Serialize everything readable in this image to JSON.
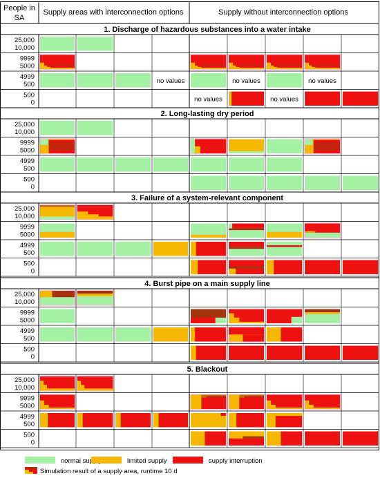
{
  "colors": {
    "normal": "#a6f0a6",
    "limited": "#f5b700",
    "interruption": "#ee1111",
    "transition": "#a3340f",
    "grid": "#000000",
    "tint": "#f7c7dc"
  },
  "header": {
    "people_col": "People in SA",
    "group_interconnection": "Supply areas with interconnection options",
    "group_no_interconnection": "Supply without interconnection options"
  },
  "band_labels": [
    "25,000\n10,000",
    "9999\n5000",
    "4999\n500",
    "500\n0"
  ],
  "no_values_label": "no values",
  "scenarios": [
    {
      "title": "1. Discharge of hazardous substances into a water intake",
      "rows": [
        [
          {
            "pat": "N"
          },
          {
            "pat": "N"
          },
          null,
          null,
          null,
          null,
          null,
          null,
          null
        ],
        [
          {
            "pat": "R1",
            "tint": true
          },
          null,
          null,
          null,
          {
            "pat": "R1",
            "tint": true
          },
          {
            "pat": "R1",
            "tint": true
          },
          {
            "pat": "R1",
            "tint": true
          },
          {
            "pat": "R1",
            "tint": true
          },
          null
        ],
        [
          {
            "pat": "N"
          },
          {
            "pat": "N"
          },
          {
            "pat": "N"
          },
          "nv",
          {
            "pat": "N"
          },
          "nv",
          {
            "pat": "N"
          },
          "nv",
          null
        ],
        [
          null,
          null,
          null,
          null,
          "nv",
          {
            "pat": "R2"
          },
          "nv",
          {
            "pat": "R"
          },
          {
            "pat": "R"
          }
        ]
      ]
    },
    {
      "title": "2. Long-lasting dry period",
      "rows": [
        [
          {
            "pat": "N"
          },
          {
            "pat": "N"
          },
          null,
          null,
          null,
          null,
          null,
          null,
          null
        ],
        [
          {
            "pat": "R3",
            "tint": true
          },
          null,
          null,
          null,
          {
            "pat": "R4",
            "tint": true
          },
          {
            "pat": "L1"
          },
          {
            "pat": "N"
          },
          {
            "pat": "R3",
            "tint": true
          },
          null
        ],
        [
          {
            "pat": "N"
          },
          {
            "pat": "N"
          },
          {
            "pat": "N"
          },
          {
            "pat": "N"
          },
          {
            "pat": "N"
          },
          {
            "pat": "N"
          },
          {
            "pat": "N"
          },
          null,
          null
        ],
        [
          null,
          null,
          null,
          null,
          {
            "pat": "N"
          },
          {
            "pat": "N"
          },
          {
            "pat": "N"
          },
          {
            "pat": "N"
          },
          {
            "pat": "N"
          }
        ]
      ]
    },
    {
      "title": "3. Failure of a system-relevant component",
      "rows": [
        [
          {
            "pat": "L2",
            "tint": true
          },
          {
            "pat": "L3",
            "tint": true
          },
          null,
          null,
          null,
          null,
          null,
          null,
          null
        ],
        [
          {
            "pat": "NL"
          },
          null,
          null,
          null,
          {
            "pat": "NR"
          },
          {
            "pat": "NR2"
          },
          {
            "pat": "NL"
          },
          {
            "pat": "NR3",
            "tint": true
          },
          null
        ],
        [
          {
            "pat": "N"
          },
          {
            "pat": "N"
          },
          {
            "pat": "N"
          },
          {
            "pat": "L"
          },
          {
            "pat": "R5"
          },
          {
            "pat": "NR4"
          },
          {
            "pat": "NR5"
          },
          null,
          null
        ],
        [
          null,
          null,
          null,
          null,
          {
            "pat": "R6"
          },
          {
            "pat": "R7"
          },
          {
            "pat": "R6"
          },
          {
            "pat": "R"
          },
          {
            "pat": "R"
          }
        ]
      ]
    },
    {
      "title": "4. Burst pipe on a main supply line",
      "rows": [
        [
          {
            "pat": "NT",
            "tint": true
          },
          {
            "pat": "NT2",
            "tint": true
          },
          null,
          null,
          null,
          null,
          null,
          null,
          null
        ],
        [
          {
            "pat": "N"
          },
          null,
          null,
          null,
          {
            "pat": "R8"
          },
          {
            "pat": "R9"
          },
          {
            "pat": "R10"
          },
          {
            "pat": "NR6"
          },
          null
        ],
        [
          {
            "pat": "N"
          },
          {
            "pat": "N"
          },
          {
            "pat": "N"
          },
          {
            "pat": "L"
          },
          {
            "pat": "R11"
          },
          {
            "pat": "R12",
            "tint": true
          },
          {
            "pat": "R13"
          },
          null,
          null
        ],
        [
          null,
          null,
          null,
          null,
          {
            "pat": "R14"
          },
          {
            "pat": "R"
          },
          {
            "pat": "R"
          },
          {
            "pat": "R"
          },
          {
            "pat": "R"
          }
        ]
      ]
    },
    {
      "title": "5. Blackout",
      "rows": [
        [
          {
            "pat": "R15",
            "tint": true
          },
          {
            "pat": "R15",
            "tint": true
          },
          null,
          null,
          null,
          null,
          null,
          null,
          null
        ],
        [
          {
            "pat": "R16",
            "tint": true
          },
          null,
          null,
          null,
          {
            "pat": "R17",
            "tint": true
          },
          {
            "pat": "R17",
            "tint": true
          },
          {
            "pat": "R16",
            "tint": true
          },
          {
            "pat": "R16",
            "tint": true
          },
          null
        ],
        [
          {
            "pat": "R18"
          },
          {
            "pat": "R19"
          },
          {
            "pat": "R19"
          },
          {
            "pat": "R19"
          },
          {
            "pat": "L4"
          },
          {
            "pat": "R18"
          },
          {
            "pat": "R20"
          },
          null,
          null
        ],
        [
          null,
          null,
          null,
          null,
          {
            "pat": "R21"
          },
          {
            "pat": "R22"
          },
          {
            "pat": "R21"
          },
          {
            "pat": "R"
          },
          {
            "pat": "R"
          }
        ]
      ]
    }
  ],
  "legend": {
    "normal": "normal supply",
    "limited": "limited supply",
    "interruption": "supply interruption",
    "simulation": "Simulation result of a supply area, runtime 10 d"
  }
}
